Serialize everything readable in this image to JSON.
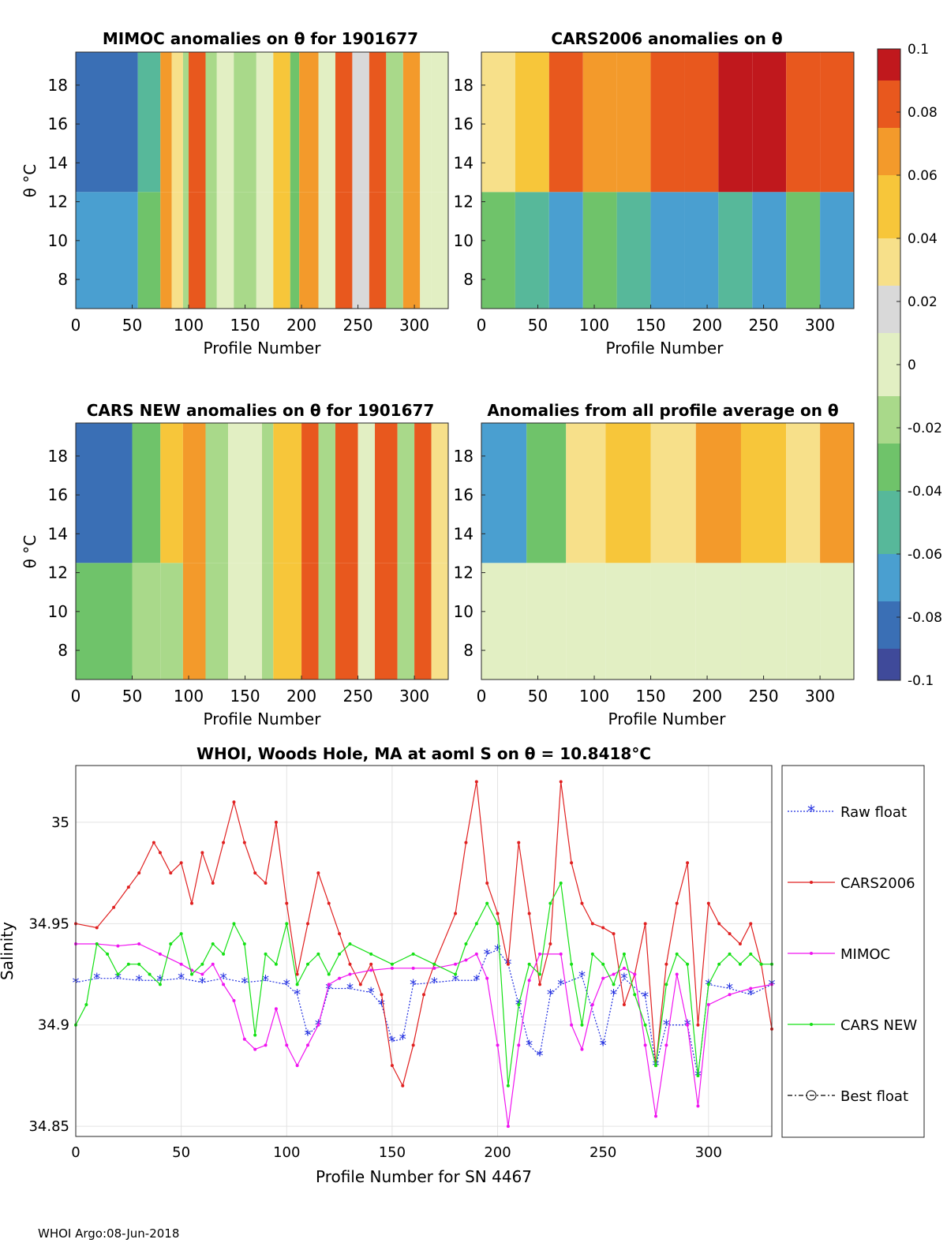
{
  "footer": "WHOI Argo:08-Jun-2018",
  "colorbar": {
    "ticks": [
      "0.1",
      "0.08",
      "0.06",
      "0.04",
      "0.02",
      "0",
      "-0.02",
      "-0.04",
      "-0.06",
      "-0.08",
      "-0.1"
    ],
    "range": [
      -0.1,
      0.1
    ],
    "palette": [
      "#3f4a9a",
      "#3a6fb5",
      "#4a9fd0",
      "#57b89a",
      "#6fc36a",
      "#a9d98a",
      "#e2efc3",
      "#d9d9d9",
      "#f7e08a",
      "#f7c63a",
      "#f39a2b",
      "#e8581e",
      "#c0181d"
    ]
  },
  "chart_data": [
    {
      "type": "heatmap",
      "title": "MIMOC anomalies on θ  for 1901677",
      "xlabel": "Profile Number",
      "ylabel": "θ °C",
      "xlim": [
        0,
        330
      ],
      "ylim": [
        6.5,
        19.7
      ],
      "xticks": [
        "0",
        "50",
        "100",
        "150",
        "200",
        "250",
        "300"
      ],
      "yticks": [
        "18",
        "16",
        "14",
        "12",
        "10",
        "8"
      ],
      "columns": [
        {
          "x": [
            0,
            55
          ],
          "v": -0.07,
          "upper": -0.09
        },
        {
          "x": [
            55,
            75
          ],
          "v": -0.03,
          "upper": -0.05
        },
        {
          "x": [
            75,
            85
          ],
          "v": 0.07
        },
        {
          "x": [
            85,
            95
          ],
          "v": 0.04
        },
        {
          "x": [
            95,
            100
          ],
          "v": -0.02
        },
        {
          "x": [
            100,
            115
          ],
          "v": 0.08
        },
        {
          "x": [
            115,
            125
          ],
          "v": -0.02
        },
        {
          "x": [
            125,
            140
          ],
          "v": 0.0
        },
        {
          "x": [
            140,
            160
          ],
          "v": -0.01
        },
        {
          "x": [
            160,
            175
          ],
          "v": 0.0
        },
        {
          "x": [
            175,
            190
          ],
          "v": 0.05
        },
        {
          "x": [
            190,
            198
          ],
          "v": -0.03
        },
        {
          "x": [
            198,
            215
          ],
          "v": 0.06
        },
        {
          "x": [
            215,
            230
          ],
          "v": 0.0
        },
        {
          "x": [
            230,
            245
          ],
          "v": 0.09
        },
        {
          "x": [
            245,
            260
          ],
          "v": 0.02
        },
        {
          "x": [
            260,
            275
          ],
          "v": 0.09
        },
        {
          "x": [
            275,
            290
          ],
          "v": -0.02
        },
        {
          "x": [
            290,
            305
          ],
          "v": 0.07
        },
        {
          "x": [
            305,
            315
          ],
          "v": 0.0
        },
        {
          "x": [
            315,
            330
          ],
          "v": 0.0
        }
      ]
    },
    {
      "type": "heatmap",
      "title": "CARS2006 anomalies on θ",
      "xlabel": "Profile Number",
      "ylabel": "",
      "xlim": [
        0,
        330
      ],
      "ylim": [
        6.5,
        19.7
      ],
      "xticks": [
        "0",
        "50",
        "100",
        "150",
        "200",
        "250",
        "300"
      ],
      "yticks": [
        "18",
        "16",
        "14",
        "12",
        "10",
        "8"
      ],
      "columns": [
        {
          "x": [
            0,
            30
          ],
          "v": -0.03,
          "upper": 0.04
        },
        {
          "x": [
            30,
            60
          ],
          "v": -0.05,
          "upper": 0.05
        },
        {
          "x": [
            60,
            90
          ],
          "v": -0.06,
          "upper": 0.08
        },
        {
          "x": [
            90,
            120
          ],
          "v": -0.04,
          "upper": 0.07
        },
        {
          "x": [
            120,
            150
          ],
          "v": -0.05,
          "upper": 0.06
        },
        {
          "x": [
            150,
            180
          ],
          "v": -0.07,
          "upper": 0.09
        },
        {
          "x": [
            180,
            210
          ],
          "v": -0.06,
          "upper": 0.09
        },
        {
          "x": [
            210,
            240
          ],
          "v": -0.05,
          "upper": 0.1
        },
        {
          "x": [
            240,
            270
          ],
          "v": -0.06,
          "upper": 0.1
        },
        {
          "x": [
            270,
            300
          ],
          "v": -0.04,
          "upper": 0.09
        },
        {
          "x": [
            300,
            330
          ],
          "v": -0.06,
          "upper": 0.08
        }
      ]
    },
    {
      "type": "heatmap",
      "title": "CARS NEW anomalies on θ for 1901677",
      "xlabel": "Profile Number",
      "ylabel": "θ °C",
      "xlim": [
        0,
        330
      ],
      "ylim": [
        6.5,
        19.7
      ],
      "xticks": [
        "0",
        "50",
        "100",
        "150",
        "200",
        "250",
        "300"
      ],
      "yticks": [
        "18",
        "16",
        "14",
        "12",
        "10",
        "8"
      ],
      "columns": [
        {
          "x": [
            0,
            50
          ],
          "v": -0.03,
          "upper": -0.08
        },
        {
          "x": [
            50,
            75
          ],
          "v": -0.01,
          "upper": -0.04
        },
        {
          "x": [
            75,
            95
          ],
          "v": -0.02,
          "upper": 0.05
        },
        {
          "x": [
            95,
            115
          ],
          "v": 0.06
        },
        {
          "x": [
            115,
            135
          ],
          "v": -0.02
        },
        {
          "x": [
            135,
            165
          ],
          "v": 0.0
        },
        {
          "x": [
            165,
            175
          ],
          "v": -0.02
        },
        {
          "x": [
            175,
            200
          ],
          "v": 0.05
        },
        {
          "x": [
            200,
            215
          ],
          "v": 0.08
        },
        {
          "x": [
            215,
            230
          ],
          "v": -0.02
        },
        {
          "x": [
            230,
            250
          ],
          "v": 0.09
        },
        {
          "x": [
            250,
            265
          ],
          "v": 0.0
        },
        {
          "x": [
            265,
            285
          ],
          "v": 0.09
        },
        {
          "x": [
            285,
            300
          ],
          "v": -0.02
        },
        {
          "x": [
            300,
            315
          ],
          "v": 0.08
        },
        {
          "x": [
            315,
            330
          ],
          "v": 0.04
        }
      ]
    },
    {
      "type": "heatmap",
      "title": "Anomalies from all profile average on θ",
      "xlabel": "Profile Number",
      "ylabel": "",
      "xlim": [
        0,
        330
      ],
      "ylim": [
        6.5,
        19.7
      ],
      "xticks": [
        "0",
        "50",
        "100",
        "150",
        "200",
        "250",
        "300"
      ],
      "yticks": [
        "18",
        "16",
        "14",
        "12",
        "10",
        "8"
      ],
      "columns": [
        {
          "x": [
            0,
            40
          ],
          "v": 0.0,
          "upper": -0.06
        },
        {
          "x": [
            40,
            75
          ],
          "v": 0.0,
          "upper": -0.03
        },
        {
          "x": [
            75,
            110
          ],
          "v": 0.0,
          "upper": 0.04
        },
        {
          "x": [
            110,
            150
          ],
          "v": 0.0,
          "upper": 0.05
        },
        {
          "x": [
            150,
            190
          ],
          "v": 0.0,
          "upper": 0.04
        },
        {
          "x": [
            190,
            230
          ],
          "v": 0.0,
          "upper": 0.06
        },
        {
          "x": [
            230,
            270
          ],
          "v": 0.0,
          "upper": 0.05
        },
        {
          "x": [
            270,
            300
          ],
          "v": 0.0,
          "upper": 0.04
        },
        {
          "x": [
            300,
            330
          ],
          "v": 0.0,
          "upper": 0.06
        }
      ]
    },
    {
      "type": "line",
      "title": "WHOI, Woods Hole, MA at aoml S on θ = 10.8418°C",
      "xlabel": "Profile Number for SN 4467",
      "ylabel": "Salinity",
      "xlim": [
        0,
        330
      ],
      "ylim": [
        34.845,
        35.028
      ],
      "xticks": [
        "0",
        "50",
        "100",
        "150",
        "200",
        "250",
        "300"
      ],
      "yticks": [
        "35",
        "34.95",
        "34.9",
        "34.85"
      ],
      "legend": [
        "Raw float",
        "CARS2006",
        "MIMOC",
        "CARS NEW",
        "Best float"
      ],
      "series": [
        {
          "name": "Raw float",
          "color": "#1f2de0",
          "x": [
            0,
            10,
            20,
            30,
            40,
            50,
            60,
            70,
            80,
            90,
            100,
            105,
            110,
            115,
            120,
            130,
            140,
            145,
            150,
            155,
            160,
            170,
            180,
            190,
            195,
            200,
            205,
            210,
            215,
            220,
            225,
            230,
            240,
            250,
            255,
            260,
            270,
            275,
            280,
            290,
            295,
            300,
            310,
            320,
            330
          ],
          "y": [
            34.921,
            34.923,
            34.923,
            34.922,
            34.922,
            34.923,
            34.921,
            34.923,
            34.921,
            34.922,
            34.92,
            34.915,
            34.895,
            34.9,
            34.918,
            34.918,
            34.916,
            34.91,
            34.892,
            34.893,
            34.92,
            34.921,
            34.922,
            34.922,
            34.935,
            34.937,
            34.93,
            34.91,
            34.89,
            34.885,
            34.915,
            34.92,
            34.924,
            34.89,
            34.915,
            34.923,
            34.914,
            34.88,
            34.9,
            34.9,
            34.875,
            34.92,
            34.918,
            34.915,
            34.92
          ]
        },
        {
          "name": "CARS2006",
          "color": "#e02020",
          "x": [
            0,
            10,
            18,
            25,
            30,
            37,
            40,
            45,
            50,
            55,
            60,
            65,
            70,
            75,
            80,
            85,
            90,
            95,
            100,
            105,
            110,
            115,
            120,
            125,
            130,
            135,
            140,
            145,
            150,
            155,
            160,
            165,
            170,
            180,
            185,
            190,
            195,
            200,
            205,
            210,
            215,
            220,
            225,
            230,
            235,
            240,
            245,
            250,
            255,
            260,
            265,
            270,
            275,
            280,
            285,
            290,
            295,
            300,
            305,
            310,
            315,
            320,
            325,
            330
          ],
          "y": [
            34.95,
            34.948,
            34.958,
            34.968,
            34.975,
            34.99,
            34.985,
            34.975,
            34.98,
            34.96,
            34.985,
            34.97,
            34.99,
            35.01,
            34.99,
            34.975,
            34.97,
            35.0,
            34.96,
            34.925,
            34.95,
            34.975,
            34.96,
            34.945,
            34.93,
            34.92,
            34.93,
            34.915,
            34.88,
            34.87,
            34.89,
            34.915,
            34.93,
            34.955,
            34.99,
            35.02,
            34.97,
            34.955,
            34.93,
            34.99,
            34.955,
            34.92,
            34.94,
            35.02,
            34.98,
            34.96,
            34.95,
            34.948,
            34.945,
            34.91,
            34.925,
            34.95,
            34.88,
            34.93,
            34.96,
            34.98,
            34.9,
            34.96,
            34.95,
            34.945,
            34.94,
            34.95,
            34.93,
            34.898
          ]
        },
        {
          "name": "MIMOC",
          "color": "#f014f0",
          "x": [
            0,
            10,
            20,
            30,
            40,
            50,
            55,
            60,
            65,
            70,
            75,
            80,
            85,
            90,
            95,
            100,
            105,
            110,
            115,
            120,
            125,
            130,
            140,
            150,
            160,
            170,
            180,
            185,
            190,
            195,
            200,
            205,
            210,
            215,
            220,
            230,
            235,
            240,
            245,
            250,
            255,
            260,
            265,
            270,
            275,
            280,
            285,
            290,
            295,
            300,
            310,
            320,
            330
          ],
          "y": [
            34.94,
            34.94,
            34.939,
            34.94,
            34.935,
            34.93,
            34.927,
            34.925,
            34.93,
            34.92,
            34.912,
            34.893,
            34.888,
            34.89,
            34.908,
            34.89,
            34.88,
            34.89,
            34.9,
            34.92,
            34.923,
            34.925,
            34.927,
            34.928,
            34.928,
            34.928,
            34.93,
            34.932,
            34.935,
            34.923,
            34.89,
            34.85,
            34.89,
            34.922,
            34.935,
            34.935,
            34.9,
            34.888,
            34.91,
            34.923,
            34.925,
            34.928,
            34.925,
            34.89,
            34.855,
            34.89,
            34.925,
            34.9,
            34.86,
            34.91,
            34.915,
            34.918,
            34.92
          ]
        },
        {
          "name": "CARS NEW",
          "color": "#14e014",
          "x": [
            0,
            5,
            10,
            15,
            20,
            25,
            30,
            35,
            40,
            45,
            50,
            55,
            60,
            65,
            70,
            75,
            80,
            85,
            90,
            95,
            100,
            105,
            110,
            115,
            120,
            125,
            130,
            140,
            150,
            160,
            170,
            180,
            185,
            190,
            195,
            200,
            205,
            210,
            215,
            220,
            225,
            230,
            235,
            240,
            245,
            250,
            255,
            260,
            265,
            270,
            275,
            280,
            285,
            290,
            295,
            300,
            305,
            310,
            315,
            320,
            325,
            330
          ],
          "y": [
            34.9,
            34.91,
            34.94,
            34.935,
            34.925,
            34.93,
            34.93,
            34.925,
            34.92,
            34.94,
            34.945,
            34.925,
            34.93,
            34.94,
            34.935,
            34.95,
            34.94,
            34.895,
            34.935,
            34.93,
            34.95,
            34.92,
            34.93,
            34.935,
            34.925,
            34.935,
            34.94,
            34.935,
            34.93,
            34.935,
            34.93,
            34.925,
            34.94,
            34.95,
            34.96,
            34.95,
            34.87,
            34.91,
            34.93,
            34.925,
            34.96,
            34.97,
            34.93,
            34.9,
            34.935,
            34.93,
            34.92,
            34.935,
            34.915,
            34.9,
            34.88,
            34.92,
            34.935,
            34.93,
            34.875,
            34.92,
            34.93,
            34.935,
            34.93,
            34.935,
            34.93,
            34.93
          ]
        },
        {
          "name": "Best float",
          "color": "#000000",
          "x": [],
          "y": []
        }
      ]
    }
  ]
}
